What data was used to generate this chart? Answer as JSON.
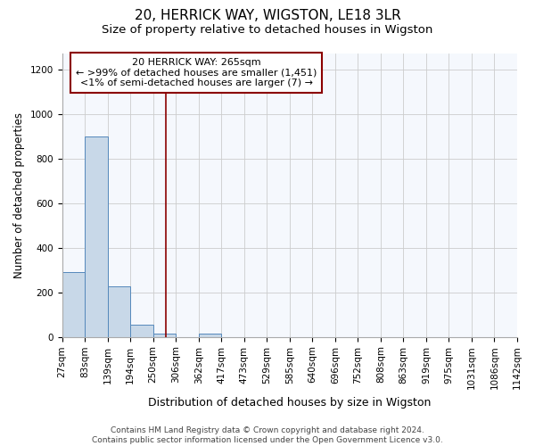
{
  "title": "20, HERRICK WAY, WIGSTON, LE18 3LR",
  "subtitle": "Size of property relative to detached houses in Wigston",
  "xlabel": "Distribution of detached houses by size in Wigston",
  "ylabel": "Number of detached properties",
  "tick_labels": [
    "27sqm",
    "83sqm",
    "139sqm",
    "194sqm",
    "250sqm",
    "306sqm",
    "362sqm",
    "417sqm",
    "473sqm",
    "529sqm",
    "585sqm",
    "640sqm",
    "696sqm",
    "752sqm",
    "808sqm",
    "863sqm",
    "919sqm",
    "975sqm",
    "1031sqm",
    "1086sqm",
    "1142sqm"
  ],
  "bar_heights": [
    290,
    900,
    225,
    55,
    15,
    0,
    15,
    0,
    0,
    0,
    0,
    0,
    0,
    0,
    0,
    0,
    0,
    0,
    0,
    0
  ],
  "bar_color": "#c8d8e8",
  "bar_edgecolor": "#5588bb",
  "ylim": [
    0,
    1270
  ],
  "vline_position": 4.55,
  "vline_color": "#8b0000",
  "annotation_text": "20 HERRICK WAY: 265sqm\n← >99% of detached houses are smaller (1,451)\n<1% of semi-detached houses are larger (7) →",
  "annotation_box_edgecolor": "#8b0000",
  "annotation_box_fill": "#ffffff",
  "footer_text": "Contains HM Land Registry data © Crown copyright and database right 2024.\nContains public sector information licensed under the Open Government Licence v3.0.",
  "title_fontsize": 11,
  "subtitle_fontsize": 9.5,
  "xlabel_fontsize": 9,
  "ylabel_fontsize": 8.5,
  "tick_fontsize": 7.5,
  "annotation_fontsize": 8,
  "footer_fontsize": 6.5
}
